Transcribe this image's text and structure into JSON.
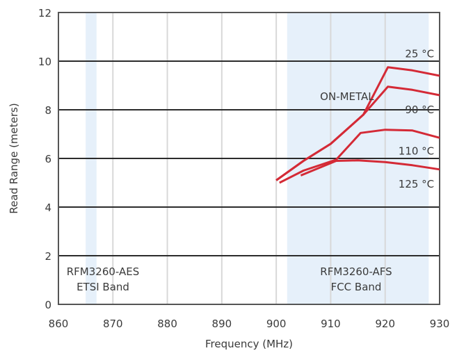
{
  "chart_data": {
    "type": "line",
    "xlabel": "Frequency (MHz)",
    "ylabel": "Read Range (meters)",
    "xlim": [
      860,
      930
    ],
    "ylim": [
      0,
      12
    ],
    "x_ticks": [
      "860",
      "870",
      "880",
      "890",
      "900",
      "910",
      "920",
      "930"
    ],
    "y_ticks": [
      "0",
      "2",
      "4",
      "6",
      "8",
      "10",
      "12"
    ],
    "grid": {
      "vertical": true,
      "horizontal": true
    },
    "bands": [
      {
        "label_lines": [
          "RFM3260-AES",
          "ETSI Band"
        ],
        "x_range": [
          865.0,
          867.0
        ]
      },
      {
        "label_lines": [
          "RFM3260-AFS",
          "FCC Band"
        ],
        "x_range": [
          902.0,
          928.0
        ]
      }
    ],
    "annotations": [
      {
        "text": "ON-METAL",
        "x": 913,
        "y": 8.55
      }
    ],
    "series": [
      {
        "name": "25 °C",
        "color": "#d42a36",
        "points": [
          [
            900,
            5.1
          ],
          [
            905,
            5.9
          ],
          [
            910,
            6.6
          ],
          [
            916,
            7.8
          ],
          [
            920.5,
            9.75
          ],
          [
            925,
            9.62
          ],
          [
            930,
            9.4
          ]
        ],
        "label_pos": [
          929,
          10.3
        ]
      },
      {
        "name": "90 °C",
        "color": "#d42a36",
        "points": [
          [
            900,
            5.1
          ],
          [
            905,
            5.9
          ],
          [
            910,
            6.6
          ],
          [
            916,
            7.8
          ],
          [
            920.5,
            8.95
          ],
          [
            925,
            8.82
          ],
          [
            930,
            8.6
          ]
        ],
        "label_pos": [
          929,
          8.0
        ]
      },
      {
        "name": "110 °C",
        "color": "#d42a36",
        "points": [
          [
            900.6,
            5.0
          ],
          [
            905,
            5.5
          ],
          [
            911,
            5.95
          ],
          [
            915.5,
            7.05
          ],
          [
            920,
            7.18
          ],
          [
            925,
            7.15
          ],
          [
            930,
            6.85
          ]
        ],
        "label_pos": [
          929,
          6.3
        ]
      },
      {
        "name": "125 °C",
        "color": "#d42a36",
        "points": [
          [
            904.5,
            5.3
          ],
          [
            911,
            5.9
          ],
          [
            915,
            5.92
          ],
          [
            920,
            5.85
          ],
          [
            925,
            5.72
          ],
          [
            930,
            5.55
          ]
        ],
        "label_pos": [
          929,
          4.95
        ]
      }
    ]
  },
  "colors": {
    "band_fill": "#e6f0fa",
    "frame": "#555555",
    "vertical_grid": "#d8d8d8",
    "horizontal_grid": "#2b2b2b",
    "line": "#d42a36"
  }
}
